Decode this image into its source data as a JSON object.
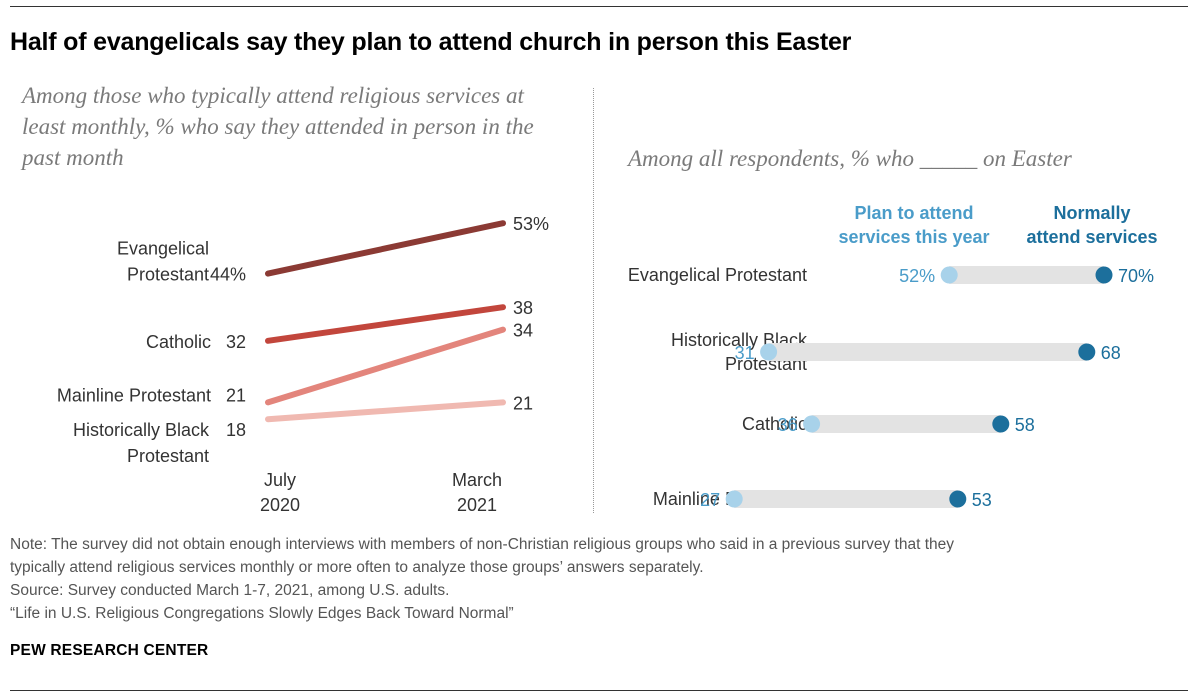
{
  "title": "Half of evangelicals say they plan to attend church in person this Easter",
  "colors": {
    "evangelical": "#8b3a34",
    "catholic": "#c2463c",
    "mainline": "#e3857c",
    "black_protestant": "#f0b9b1",
    "plan": "#a8d2ea",
    "plan_text": "#4a9cc9",
    "normal": "#1c6f9c",
    "track": "#e3e3e3"
  },
  "chart_data": [
    {
      "type": "line",
      "title": "Among those who typically attend religious services at least monthly, % who say they attended in person in the past month",
      "x": [
        "July\n2020",
        "March\n2021"
      ],
      "ylim": [
        0,
        60
      ],
      "series": [
        {
          "name": "Evangelical Protestant",
          "values": [
            44,
            53
          ],
          "labels": [
            "44%",
            "53%"
          ]
        },
        {
          "name": "Catholic",
          "values": [
            32,
            38
          ],
          "labels": [
            "32",
            "38"
          ]
        },
        {
          "name": "Mainline Protestant",
          "values": [
            21,
            34
          ],
          "labels": [
            "21",
            "34"
          ]
        },
        {
          "name": "Historically Black Protestant",
          "values": [
            18,
            21
          ],
          "labels": [
            "18",
            "21"
          ]
        }
      ]
    },
    {
      "type": "dot",
      "title": "Among all respondents, % who _____ on Easter",
      "legend": [
        "Plan to attend services this year",
        "Normally attend services"
      ],
      "categories": [
        "Evangelical Protestant",
        "Historically Black Protestant",
        "Catholic",
        "Mainline Protestant"
      ],
      "series": [
        {
          "name": "Plan to attend services this year",
          "values": [
            52,
            31,
            36,
            27
          ],
          "labels": [
            "52%",
            "31",
            "36",
            "27"
          ]
        },
        {
          "name": "Normally attend services",
          "values": [
            70,
            68,
            58,
            53
          ],
          "labels": [
            "70%",
            "68",
            "58",
            "53"
          ]
        }
      ]
    }
  ],
  "notes": {
    "note": "Note: The survey did not obtain enough interviews with members of non-Christian religious groups who said in a previous survey that they",
    "note2": "typically attend religious services monthly or more often to analyze those groups’ answers separately.",
    "source": "Source: Survey conducted March 1-7, 2021, among U.S. adults.",
    "report": "“Life in U.S. Religious Congregations Slowly Edges Back Toward Normal”"
  },
  "brand": "PEW RESEARCH CENTER"
}
